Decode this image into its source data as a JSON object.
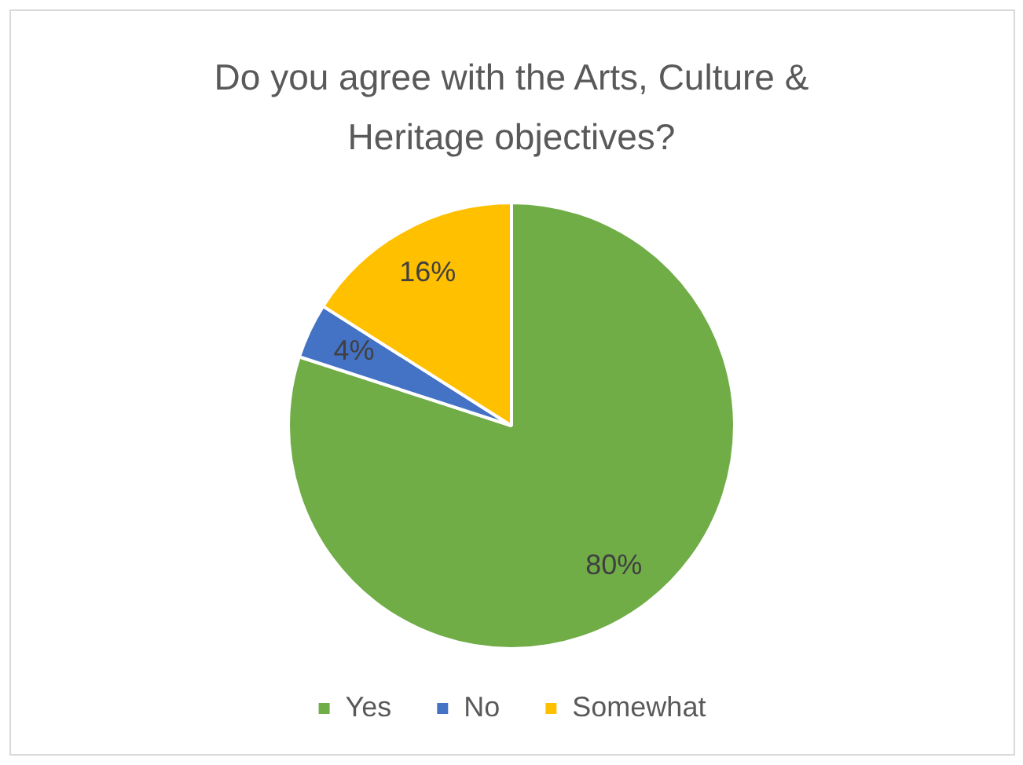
{
  "chart_data": {
    "type": "pie",
    "title": "Do you agree with the Arts, Culture & Heritage objectives?",
    "categories": [
      "Yes",
      "No",
      "Somewhat"
    ],
    "values": [
      80,
      4,
      16
    ],
    "colors": [
      "#70ad47",
      "#4472c4",
      "#ffc000"
    ],
    "value_labels": [
      "80%",
      "4%",
      "16%"
    ],
    "legend": "bottom"
  }
}
